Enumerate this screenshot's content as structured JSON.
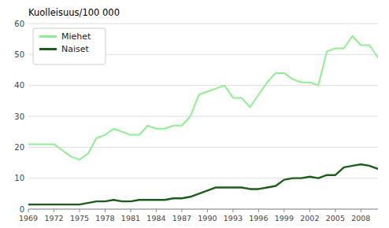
{
  "chart_data": {
    "type": "line",
    "ylabel": "Kuolleisuus/100 000",
    "x": [
      1969,
      1970,
      1971,
      1972,
      1973,
      1974,
      1975,
      1976,
      1977,
      1978,
      1979,
      1980,
      1981,
      1982,
      1983,
      1984,
      1985,
      1986,
      1987,
      1988,
      1989,
      1990,
      1991,
      1992,
      1993,
      1994,
      1995,
      1996,
      1997,
      1998,
      1999,
      2000,
      2001,
      2002,
      2003,
      2004,
      2005,
      2006,
      2007,
      2008,
      2009,
      2010
    ],
    "series": [
      {
        "name": "Miehet",
        "color": "#90EE90",
        "values": [
          21,
          21,
          21,
          21,
          19,
          17,
          16,
          18,
          23,
          24,
          26,
          25,
          24,
          24,
          27,
          26,
          26,
          27,
          27,
          30,
          37,
          38,
          39,
          40,
          36,
          36,
          33,
          37,
          41,
          44,
          44,
          42,
          41,
          41,
          40,
          51,
          52,
          52,
          56,
          53,
          53,
          49
        ]
      },
      {
        "name": "Naiset",
        "color": "#1a5e1a",
        "values": [
          1.5,
          1.5,
          1.5,
          1.5,
          1.5,
          1.5,
          1.5,
          2,
          2.5,
          2.5,
          3,
          2.5,
          2.5,
          3,
          3,
          3,
          3,
          3.5,
          3.5,
          4,
          5,
          6,
          7,
          7,
          7,
          7,
          6.5,
          6.5,
          7,
          7.5,
          9.5,
          10,
          10,
          10.5,
          10,
          11,
          11,
          13.5,
          14,
          14.5,
          14,
          13
        ]
      }
    ],
    "xlim": [
      1969,
      2010
    ],
    "xticks": [
      1969,
      1972,
      1975,
      1978,
      1981,
      1984,
      1987,
      1990,
      1993,
      1996,
      1999,
      2002,
      2005,
      2008
    ],
    "ylim": [
      0,
      60
    ],
    "yticks": [
      0,
      10,
      20,
      30,
      40,
      50,
      60
    ],
    "grid": true,
    "legend": "upper left"
  }
}
